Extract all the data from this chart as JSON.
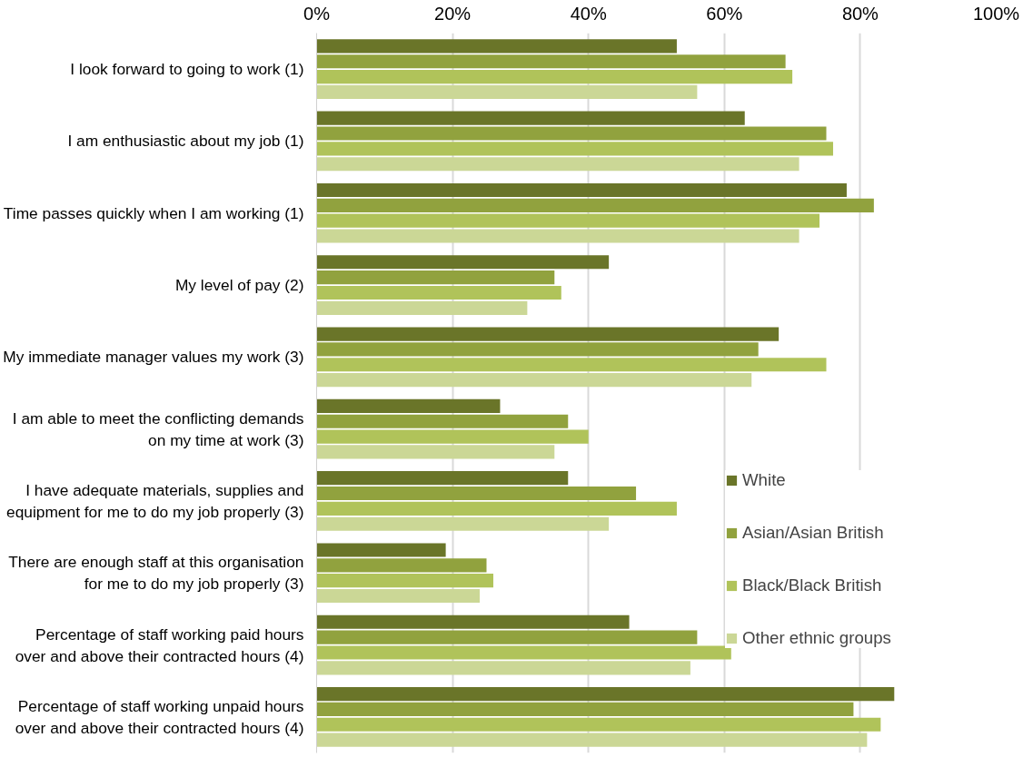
{
  "chart_data": {
    "type": "bar",
    "orientation": "horizontal",
    "categories": [
      "I look forward to going to work (1)",
      "I am enthusiastic about my job (1)",
      "Time passes quickly when I am working (1)",
      "My level of pay (2)",
      "My immediate manager values my work (3)",
      "I am able to meet the conflicting demands\non my time at work (3)",
      "I have adequate materials, supplies and\nequipment for me to do my job properly (3)",
      "There are enough staff at this organisation\nfor me to do my job properly (3)",
      "Percentage of staff working paid hours\nover and above their contracted hours (4)",
      "Percentage of staff working unpaid hours\nover and above their contracted hours (4)"
    ],
    "series": [
      {
        "name": "White",
        "color": "#6a7529",
        "values": [
          53,
          63,
          78,
          43,
          68,
          27,
          37,
          19,
          46,
          85
        ]
      },
      {
        "name": "Asian/Asian British",
        "color": "#91a23e",
        "values": [
          69,
          75,
          82,
          35,
          65,
          37,
          47,
          25,
          56,
          79
        ]
      },
      {
        "name": "Black/Black British",
        "color": "#b0c35a",
        "values": [
          70,
          76,
          74,
          36,
          75,
          40,
          53,
          26,
          61,
          83
        ]
      },
      {
        "name": "Other ethnic groups",
        "color": "#cbd796",
        "values": [
          56,
          71,
          71,
          31,
          64,
          35,
          43,
          24,
          55,
          81
        ]
      }
    ],
    "xlim": [
      0,
      100
    ],
    "xticks": [
      {
        "value": 0,
        "label": "0%"
      },
      {
        "value": 20,
        "label": "20%"
      },
      {
        "value": 40,
        "label": "40%"
      },
      {
        "value": 60,
        "label": "60%"
      },
      {
        "value": 80,
        "label": "80%"
      },
      {
        "value": 100,
        "label": "100%"
      }
    ],
    "grid": "x",
    "legend": "right"
  }
}
